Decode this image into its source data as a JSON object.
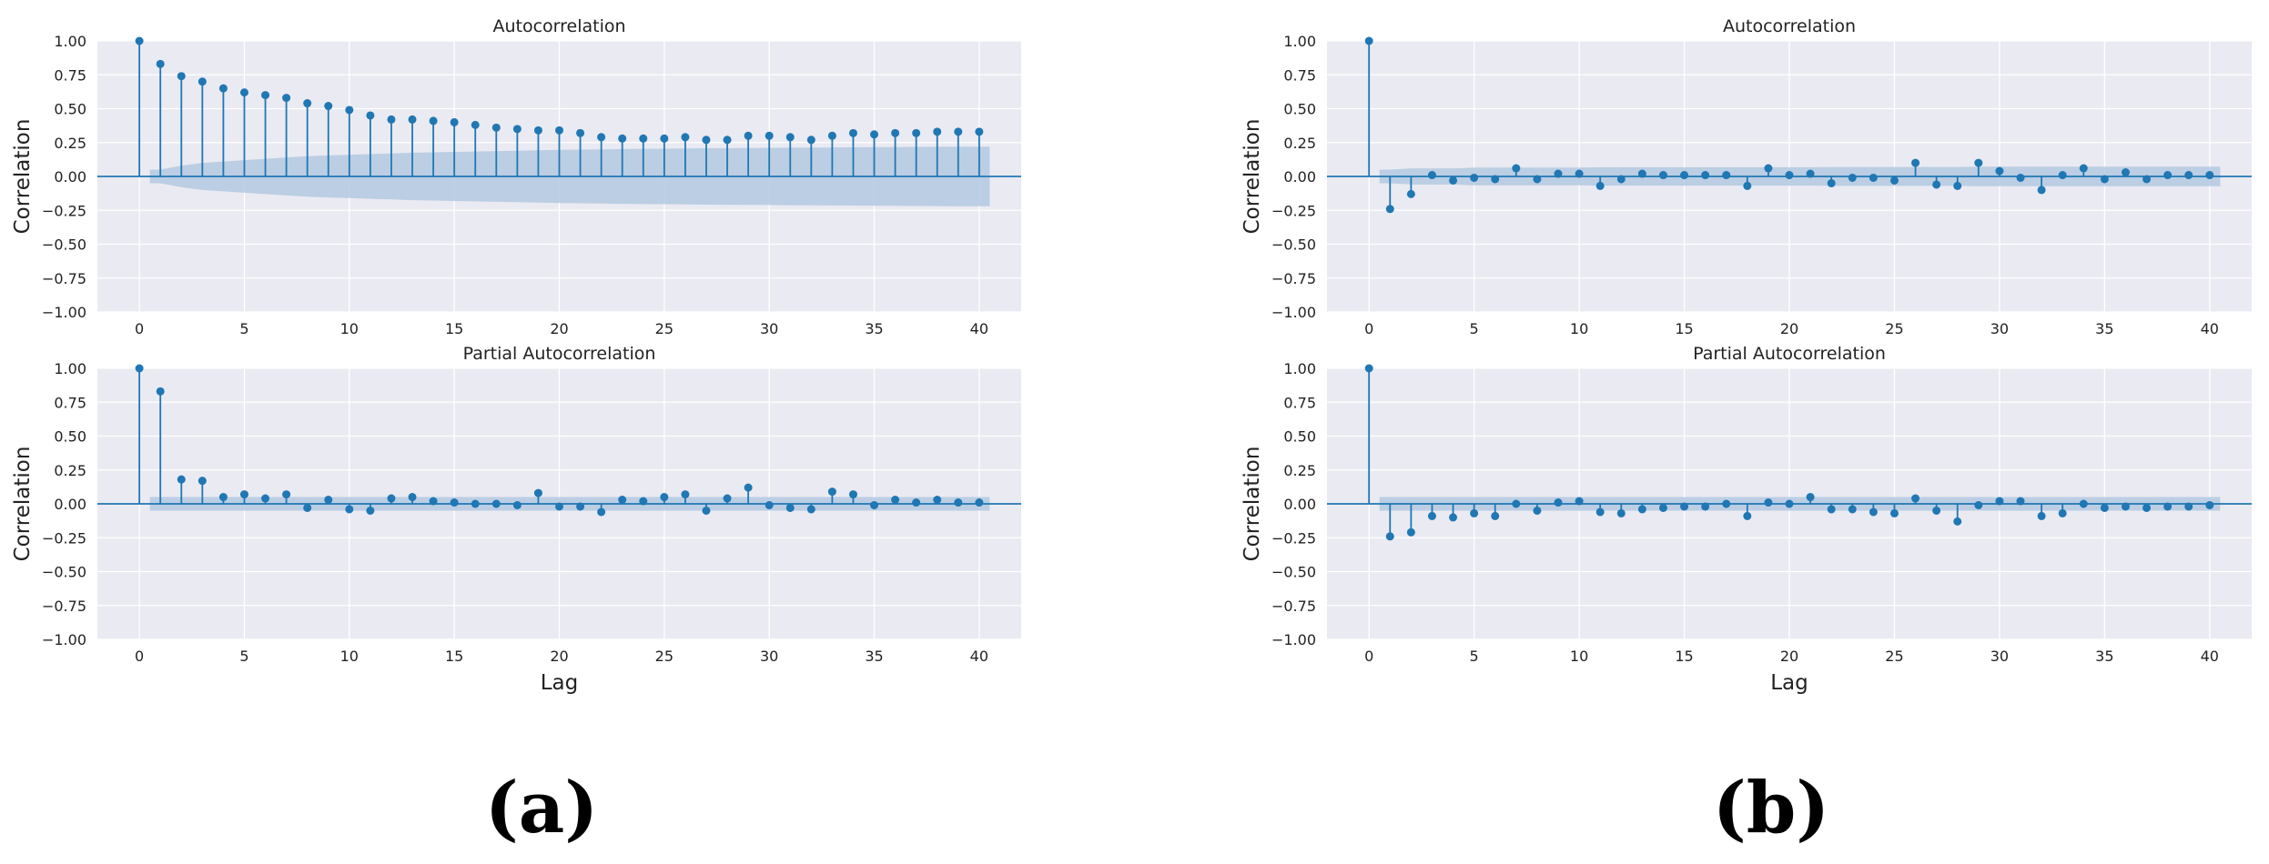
{
  "colors": {
    "panel_bg": "#eaeaf2",
    "grid": "#ffffff",
    "series": "#1f77b4",
    "band": "#b3c9e0"
  },
  "panel_labels": [
    "(a)",
    "(b)"
  ],
  "chart_data": [
    {
      "type": "stem",
      "group": "(a)",
      "title": "Autocorrelation",
      "xlabel": "",
      "ylabel": "Correlation",
      "xlim": [
        -2,
        42
      ],
      "ylim": [
        -1,
        1
      ],
      "xticks": [
        0,
        5,
        10,
        15,
        20,
        25,
        30,
        35,
        40
      ],
      "xtick_labels": [
        "0",
        "5",
        "10",
        "15",
        "20",
        "25",
        "30",
        "35",
        "40"
      ],
      "yticks": [
        1,
        0.75,
        0.5,
        0.25,
        0,
        -0.25,
        -0.5,
        -0.75,
        -1
      ],
      "ytick_labels": [
        "1.00",
        "0.75",
        "0.50",
        "0.25",
        "0.00",
        "−0.25",
        "−0.50",
        "−0.75",
        "−1.00"
      ],
      "grid": true,
      "values": [
        1.0,
        0.83,
        0.74,
        0.7,
        0.65,
        0.62,
        0.6,
        0.58,
        0.54,
        0.52,
        0.49,
        0.45,
        0.42,
        0.42,
        0.41,
        0.4,
        0.38,
        0.36,
        0.35,
        0.34,
        0.34,
        0.32,
        0.29,
        0.28,
        0.28,
        0.28,
        0.29,
        0.27,
        0.27,
        0.3,
        0.3,
        0.29,
        0.27,
        0.3,
        0.32,
        0.31,
        0.32,
        0.32,
        0.33,
        0.33,
        0.33
      ],
      "confidence_band": {
        "upper": [
          null,
          0.05,
          0.08,
          0.1,
          0.11,
          0.12,
          0.13,
          0.14,
          0.15,
          0.155,
          0.16,
          0.165,
          0.17,
          0.175,
          0.178,
          0.181,
          0.184,
          0.187,
          0.19,
          0.193,
          0.196,
          0.198,
          0.2,
          0.202,
          0.204,
          0.205,
          0.206,
          0.208,
          0.209,
          0.21,
          0.211,
          0.212,
          0.213,
          0.214,
          0.215,
          0.216,
          0.217,
          0.218,
          0.219,
          0.22,
          0.22
        ]
      }
    },
    {
      "type": "stem",
      "group": "(a)",
      "title": "Partial Autocorrelation",
      "xlabel": "Lag",
      "ylabel": "Correlation",
      "xlim": [
        -2,
        42
      ],
      "ylim": [
        -1,
        1
      ],
      "xticks": [
        0,
        5,
        10,
        15,
        20,
        25,
        30,
        35,
        40
      ],
      "xtick_labels": [
        "0",
        "5",
        "10",
        "15",
        "20",
        "25",
        "30",
        "35",
        "40"
      ],
      "yticks": [
        1,
        0.75,
        0.5,
        0.25,
        0,
        -0.25,
        -0.5,
        -0.75,
        -1
      ],
      "ytick_labels": [
        "1.00",
        "0.75",
        "0.50",
        "0.25",
        "0.00",
        "−0.25",
        "−0.50",
        "−0.75",
        "−1.00"
      ],
      "grid": true,
      "values": [
        1.0,
        0.83,
        0.18,
        0.17,
        0.05,
        0.07,
        0.04,
        0.07,
        -0.03,
        0.03,
        -0.04,
        -0.05,
        0.04,
        0.05,
        0.02,
        0.01,
        0.0,
        0.0,
        -0.01,
        0.08,
        -0.02,
        -0.02,
        -0.06,
        0.03,
        0.02,
        0.05,
        0.07,
        -0.05,
        0.04,
        0.12,
        -0.01,
        -0.03,
        -0.04,
        0.09,
        0.07,
        -0.01,
        0.03,
        0.01,
        0.03,
        0.01,
        0.01
      ],
      "confidence_band": {
        "constant": 0.05
      }
    },
    {
      "type": "stem",
      "group": "(b)",
      "title": "Autocorrelation",
      "xlabel": "",
      "ylabel": "Correlation",
      "xlim": [
        -2,
        42
      ],
      "ylim": [
        -1,
        1
      ],
      "xticks": [
        0,
        5,
        10,
        15,
        20,
        25,
        30,
        35,
        40
      ],
      "xtick_labels": [
        "0",
        "5",
        "10",
        "15",
        "20",
        "25",
        "30",
        "35",
        "40"
      ],
      "yticks": [
        1,
        0.75,
        0.5,
        0.25,
        0,
        -0.25,
        -0.5,
        -0.75,
        -1
      ],
      "ytick_labels": [
        "1.00",
        "0.75",
        "0.50",
        "0.25",
        "0.00",
        "−0.25",
        "−0.50",
        "−0.75",
        "−1.00"
      ],
      "grid": true,
      "values": [
        1.0,
        -0.24,
        -0.13,
        0.01,
        -0.03,
        -0.01,
        -0.02,
        0.06,
        -0.02,
        0.02,
        0.02,
        -0.07,
        -0.02,
        0.02,
        0.01,
        0.01,
        0.01,
        0.01,
        -0.07,
        0.06,
        0.01,
        0.02,
        -0.05,
        -0.01,
        -0.01,
        -0.03,
        0.1,
        -0.06,
        -0.07,
        0.1,
        0.04,
        -0.01,
        -0.1,
        0.01,
        0.06,
        -0.02,
        0.03,
        -0.02,
        0.01,
        0.01,
        0.01
      ],
      "confidence_band": {
        "upper": [
          null,
          0.05,
          0.06,
          0.06,
          0.06,
          0.065,
          0.065,
          0.065,
          0.065,
          0.065,
          0.065,
          0.068,
          0.068,
          0.068,
          0.068,
          0.068,
          0.068,
          0.068,
          0.068,
          0.068,
          0.068,
          0.068,
          0.07,
          0.07,
          0.07,
          0.07,
          0.07,
          0.07,
          0.07,
          0.072,
          0.072,
          0.072,
          0.072,
          0.072,
          0.072,
          0.072,
          0.072,
          0.072,
          0.072,
          0.072,
          0.072
        ]
      }
    },
    {
      "type": "stem",
      "group": "(b)",
      "title": "Partial Autocorrelation",
      "xlabel": "Lag",
      "ylabel": "Correlation",
      "xlim": [
        -2,
        42
      ],
      "ylim": [
        -1,
        1
      ],
      "xticks": [
        0,
        5,
        10,
        15,
        20,
        25,
        30,
        35,
        40
      ],
      "xtick_labels": [
        "0",
        "5",
        "10",
        "15",
        "20",
        "25",
        "30",
        "35",
        "40"
      ],
      "yticks": [
        1,
        0.75,
        0.5,
        0.25,
        0,
        -0.25,
        -0.5,
        -0.75,
        -1
      ],
      "ytick_labels": [
        "1.00",
        "0.75",
        "0.50",
        "0.25",
        "0.00",
        "−0.25",
        "−0.50",
        "−0.75",
        "−1.00"
      ],
      "grid": true,
      "values": [
        1.0,
        -0.24,
        -0.21,
        -0.09,
        -0.1,
        -0.07,
        -0.09,
        0.0,
        -0.05,
        0.01,
        0.02,
        -0.06,
        -0.07,
        -0.04,
        -0.03,
        -0.02,
        -0.02,
        0.0,
        -0.09,
        0.01,
        0.0,
        0.05,
        -0.04,
        -0.04,
        -0.06,
        -0.07,
        0.04,
        -0.05,
        -0.13,
        -0.01,
        0.02,
        0.02,
        -0.09,
        -0.07,
        0.0,
        -0.03,
        -0.02,
        -0.03,
        -0.02,
        -0.02,
        -0.01
      ],
      "confidence_band": {
        "constant": 0.05
      }
    }
  ]
}
